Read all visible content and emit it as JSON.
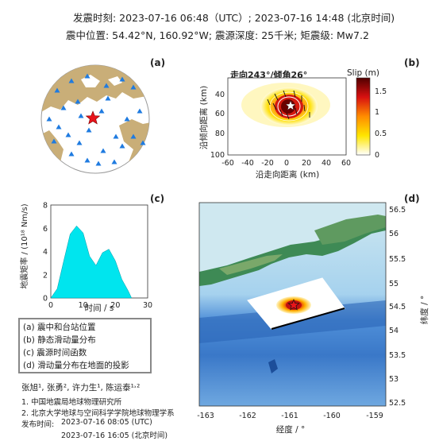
{
  "header": {
    "line1": "发震时刻: 2023-07-16 06:48（UTC）;   2023-07-16  14:48 (北京时间)",
    "line2": "震中位置: 54.42°N,  160.92°W;   震源深度: 25千米; 矩震级: Mw7.2"
  },
  "panels": {
    "a": {
      "label": "(a)"
    },
    "b": {
      "label": "(b)",
      "title": "走向243°/倾角26°",
      "colorbar_label": "Slip (m)",
      "colorbar_ticks": [
        "1.5",
        "1",
        "0.5",
        "0"
      ],
      "xlabel": "沿走向距离 (km)",
      "ylabel": "沿倾向距离 (km)",
      "xticks": [
        "-60",
        "-40",
        "-20",
        "0",
        "20",
        "40",
        "60"
      ],
      "yticks": [
        "40",
        "60",
        "80",
        "100"
      ]
    },
    "c": {
      "label": "(c)",
      "xlabel": "时间 / s",
      "ylabel": "地震矩率 / (10¹⁸ Nm/s)",
      "xticks": [
        "0",
        "10",
        "20",
        "30"
      ],
      "yticks": [
        "0",
        "2",
        "4",
        "6",
        "8"
      ]
    },
    "d": {
      "label": "(d)",
      "xlabel": "经度 / °",
      "ylabel": "纬度 / °",
      "xticks": [
        "-163",
        "-162",
        "-161",
        "-160",
        "-159"
      ],
      "yticks": [
        "56.5",
        "56",
        "55.5",
        "55",
        "54.5",
        "54",
        "53.5",
        "53",
        "52.5"
      ]
    }
  },
  "legend": {
    "items": [
      "(a) 震中和台站位置",
      "(b) 静态滑动量分布",
      "(c) 震源时间函数",
      "(d) 滑动量分布在地面的投影"
    ]
  },
  "credits": {
    "authors": "张旭¹, 张勇², 许力生¹, 陈运泰¹˒²",
    "aff1": "1. 中国地震局地球物理研究所",
    "aff2": "2. 北京大学地球与空间科学学院地球物理学系",
    "pub_label": "发布时间:",
    "pub_utc": "2023-07-16  08:05 (UTC)",
    "pub_bj": "2023-07-16  16:05 (北京时间)"
  },
  "chart_data": {
    "type": "area",
    "x": [
      0,
      2,
      4,
      6,
      8,
      10,
      12,
      14,
      16,
      18,
      20,
      22,
      24,
      25
    ],
    "values": [
      0,
      0.8,
      3.2,
      5.5,
      6.2,
      5.6,
      3.6,
      2.8,
      3.9,
      4.2,
      3.2,
      1.6,
      0.6,
      0
    ],
    "xlabel": "时间 / s",
    "ylabel": "地震矩率 / (10¹⁸ Nm/s)",
    "xlim": [
      0,
      30
    ],
    "ylim": [
      0,
      8
    ],
    "color": "#00e5ee"
  },
  "colors": {
    "star": "#e8141b",
    "station": "#1f7be0",
    "land_globe": "#c9ae78",
    "stf_fill": "#00e5ee"
  }
}
